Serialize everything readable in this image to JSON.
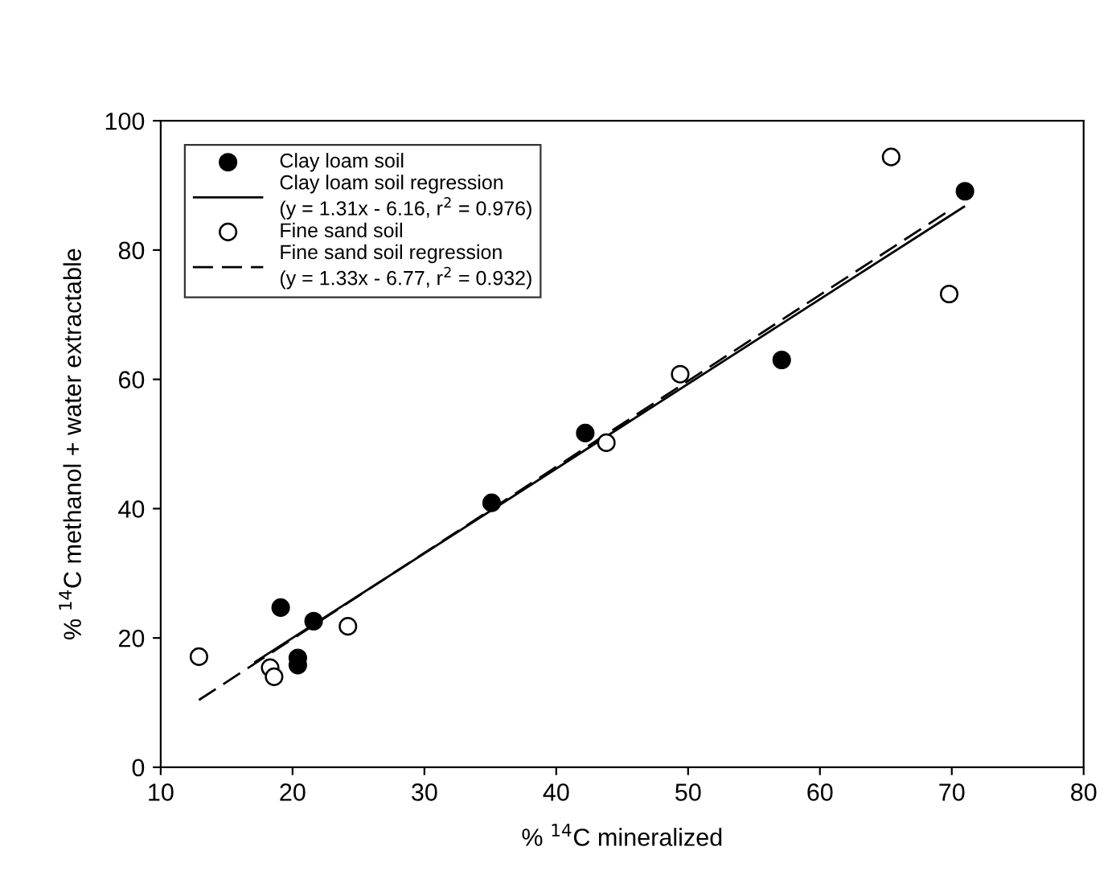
{
  "chart_data": {
    "type": "scatter",
    "xlabel": "% $^{14}$C mineralized",
    "ylabel": "% $^{14}$C methanol + water extractable",
    "xlim": [
      10,
      80
    ],
    "xticks": [
      10,
      20,
      30,
      40,
      50,
      60,
      70,
      80
    ],
    "ylim": [
      0,
      100
    ],
    "yticks": [
      0,
      20,
      40,
      60,
      80,
      100
    ],
    "grid": false,
    "legend": "top left",
    "marker": "circle",
    "series": [
      {
        "name": "Clay loam soil",
        "color": "#000000",
        "x": [
          19.1,
          21.6,
          20.4,
          20.4,
          35.1,
          42.2,
          57.1,
          71.0
        ],
        "values": [
          24.7,
          22.6,
          16.9,
          15.8,
          40.9,
          51.7,
          63.0,
          89.1
        ]
      },
      {
        "name": "Clay loam soil regression\n(y = 1.31x - 6.16, r$^{2}$ = 0.976)",
        "type": "line",
        "color": "#000000",
        "line_style": "solid",
        "marker": "none",
        "x": [
          17.1,
          71.0
        ],
        "values": [
          16.2,
          86.8
        ]
      },
      {
        "name": "Fine sand soil",
        "color": "#ffffff",
        "x": [
          12.9,
          18.3,
          18.6,
          24.2,
          43.8,
          49.4,
          65.4,
          69.8
        ],
        "values": [
          17.1,
          15.4,
          14.0,
          21.8,
          50.2,
          60.8,
          94.4,
          73.2
        ]
      },
      {
        "name": "Fine sand soil regression\n(y = 1.33x - 6.77, r$^{2}$ = 0.932)",
        "type": "line",
        "color": "#000000",
        "line_style": "dashed",
        "marker": "none",
        "x": [
          12.9,
          69.8
        ],
        "values": [
          10.4,
          86.1
        ]
      }
    ]
  }
}
